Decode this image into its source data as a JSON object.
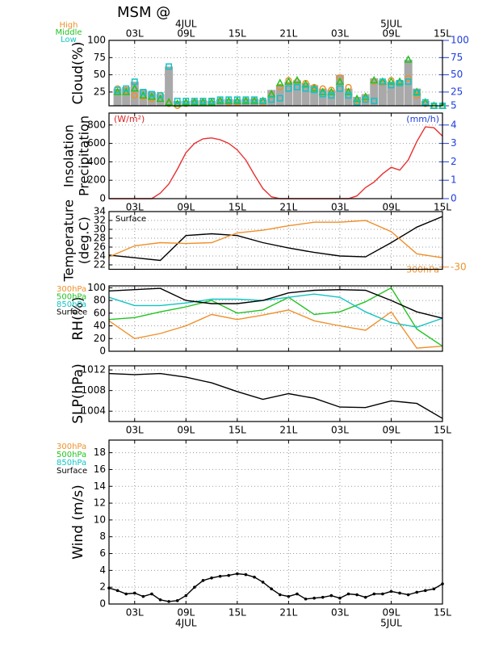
{
  "title": "MSM @",
  "time_axis": {
    "xlim": [
      0,
      39
    ],
    "xticks": [
      {
        "value": 3,
        "label": "03L"
      },
      {
        "value": 9,
        "label": "09L"
      },
      {
        "value": 15,
        "label": "15L"
      },
      {
        "value": 21,
        "label": "21L"
      },
      {
        "value": 27,
        "label": "03L"
      },
      {
        "value": 33,
        "label": "09L"
      },
      {
        "value": 39,
        "label": "15L"
      }
    ],
    "dates": [
      {
        "value": 9,
        "label": "4JUL"
      },
      {
        "value": 33,
        "label": "5JUL"
      }
    ]
  },
  "chart_data": [
    {
      "type": "bar",
      "ylabel": "Cloud(%)",
      "ylim": [
        5,
        100
      ],
      "yticks": [
        25,
        50,
        75,
        100
      ],
      "y2lim": [
        5,
        100
      ],
      "y2ticks": [
        5,
        25,
        50,
        75,
        100
      ],
      "y2_color": "#1e3ce0",
      "grid": true,
      "xtick_labels": "top",
      "date_labels": "top",
      "legend": "top-left",
      "color": "#a9a9a9",
      "x": [
        1,
        2,
        3,
        4,
        5,
        6,
        7,
        8,
        9,
        10,
        11,
        12,
        13,
        14,
        15,
        16,
        17,
        18,
        19,
        20,
        21,
        22,
        23,
        24,
        25,
        26,
        27,
        28,
        29,
        30,
        31,
        32,
        33,
        34,
        35,
        36,
        37,
        38,
        39
      ],
      "values": [
        30,
        32,
        40,
        28,
        25,
        22,
        62,
        12,
        12,
        13,
        13,
        12,
        14,
        15,
        14,
        15,
        15,
        14,
        28,
        35,
        40,
        42,
        38,
        35,
        30,
        28,
        50,
        30,
        18,
        22,
        45,
        42,
        40,
        42,
        72,
        30,
        12,
        6,
        5
      ],
      "series": [
        {
          "name": "High",
          "color": "#f0902a",
          "style": "circle",
          "values": [
            30,
            28,
            20,
            18,
            15,
            20,
            8,
            5,
            8,
            10,
            10,
            12,
            12,
            10,
            10,
            12,
            12,
            10,
            20,
            32,
            42,
            40,
            38,
            32,
            30,
            28,
            46,
            32,
            12,
            16,
            40,
            38,
            42,
            38,
            45,
            20,
            8,
            5,
            5
          ]
        },
        {
          "name": "Middle",
          "color": "#22c322",
          "style": "triangle",
          "values": [
            25,
            25,
            30,
            20,
            18,
            15,
            10,
            8,
            10,
            10,
            10,
            10,
            12,
            12,
            12,
            12,
            12,
            12,
            22,
            38,
            40,
            42,
            36,
            30,
            25,
            25,
            40,
            25,
            15,
            18,
            42,
            40,
            40,
            40,
            72,
            25,
            10,
            5,
            5
          ]
        },
        {
          "name": "Low",
          "color": "#12c4c4",
          "style": "square",
          "values": [
            28,
            30,
            40,
            25,
            22,
            20,
            62,
            12,
            12,
            12,
            12,
            12,
            14,
            14,
            14,
            14,
            14,
            12,
            14,
            16,
            30,
            32,
            30,
            28,
            22,
            20,
            30,
            20,
            10,
            14,
            12,
            40,
            35,
            38,
            40,
            24,
            10,
            5,
            5
          ]
        }
      ]
    },
    {
      "type": "line",
      "ylabel": [
        "Insolation",
        "Precipitation"
      ],
      "units_left": "(W/m²)",
      "units_left_color": "#e02020",
      "units_right": "(mm/h)",
      "ylim": [
        0,
        930
      ],
      "yticks": [
        0,
        200,
        400,
        600,
        800
      ],
      "y2lim": [
        0,
        4.65
      ],
      "y2ticks": [
        0,
        1,
        2,
        3,
        4
      ],
      "y2_color": "#1e3ce0",
      "grid": true,
      "xtick_labels": "bottom",
      "x": [
        0,
        1,
        2,
        3,
        4,
        5,
        6,
        7,
        8,
        9,
        10,
        11,
        12,
        13,
        14,
        15,
        16,
        17,
        18,
        19,
        20,
        21,
        22,
        23,
        24,
        25,
        26,
        27,
        28,
        29,
        30,
        31,
        32,
        33,
        34,
        35,
        36,
        37,
        38,
        39
      ],
      "series": [
        {
          "color": "#e83030",
          "style": "line",
          "values": [
            0,
            0,
            0,
            0,
            0,
            0,
            60,
            160,
            320,
            500,
            600,
            650,
            660,
            640,
            600,
            530,
            420,
            260,
            110,
            20,
            0,
            0,
            0,
            0,
            0,
            0,
            0,
            0,
            0,
            30,
            120,
            180,
            270,
            340,
            310,
            420,
            620,
            780,
            770,
            680
          ]
        }
      ]
    },
    {
      "type": "line",
      "ylabel": [
        "Temperature",
        "(deg.C)"
      ],
      "ylim": [
        21,
        34
      ],
      "yticks": [
        22,
        24,
        26,
        28,
        30,
        32,
        34
      ],
      "y2lim": [
        -30.5,
        -17.5
      ],
      "y2ticks": [
        -30
      ],
      "y2_color": "#f0902a",
      "grid": true,
      "xtick_labels": "none",
      "x": [
        0,
        3,
        6,
        9,
        12,
        15,
        18,
        21,
        24,
        27,
        30,
        33,
        36,
        39
      ],
      "series": [
        {
          "name": "Surface",
          "color": "#000000",
          "style": "line",
          "values": [
            24.2,
            23.6,
            23.0,
            28.6,
            29.0,
            28.6,
            27.0,
            25.8,
            24.8,
            24.0,
            23.8,
            27.0,
            30.5,
            32.9
          ]
        },
        {
          "name": "300hPa",
          "color": "#f0902a",
          "style": "line",
          "axis": "y2",
          "values": [
            -27.7,
            -25.2,
            -24.5,
            -24.7,
            -24.5,
            -22.3,
            -21.7,
            -20.7,
            -19.9,
            -19.9,
            -19.5,
            -22.0,
            -27.0,
            -27.9
          ]
        }
      ]
    },
    {
      "type": "line",
      "ylabel": "RH(%)",
      "ylim": [
        0,
        103
      ],
      "yticks": [
        0,
        20,
        40,
        60,
        80,
        100
      ],
      "grid": true,
      "xtick_labels": "none",
      "legend": "left",
      "x": [
        0,
        3,
        6,
        9,
        12,
        15,
        18,
        21,
        24,
        27,
        30,
        33,
        36,
        39
      ],
      "series": [
        {
          "name": "300hPa",
          "color": "#f0902a",
          "style": "line",
          "values": [
            48,
            20,
            28,
            40,
            58,
            50,
            57,
            65,
            48,
            40,
            33,
            62,
            5,
            8
          ]
        },
        {
          "name": "500hPa",
          "color": "#22c322",
          "style": "line",
          "values": [
            50,
            53,
            62,
            70,
            80,
            60,
            65,
            85,
            58,
            62,
            78,
            100,
            35,
            8
          ]
        },
        {
          "name": "850hPa",
          "color": "#12c4c4",
          "style": "line",
          "values": [
            85,
            72,
            72,
            76,
            82,
            82,
            80,
            85,
            90,
            85,
            62,
            45,
            38,
            52
          ]
        },
        {
          "name": "Surface",
          "color": "#000000",
          "style": "line",
          "values": [
            95,
            97,
            99,
            80,
            75,
            75,
            80,
            92,
            96,
            97,
            96,
            80,
            62,
            52
          ]
        }
      ]
    },
    {
      "type": "line",
      "ylabel": "SLP(hPa)",
      "ylim": [
        1002,
        1012.8
      ],
      "yticks": [
        1004,
        1008,
        1012
      ],
      "grid": true,
      "xtick_labels": "bottom",
      "x": [
        0,
        3,
        6,
        9,
        12,
        15,
        18,
        21,
        24,
        27,
        30,
        33,
        36,
        39
      ],
      "series": [
        {
          "color": "#000000",
          "style": "line",
          "values": [
            1011.3,
            1011.1,
            1011.3,
            1010.6,
            1009.5,
            1007.8,
            1006.3,
            1007.4,
            1006.5,
            1004.8,
            1004.7,
            1006.0,
            1005.5,
            1002.6
          ]
        }
      ]
    },
    {
      "type": "line",
      "ylabel": "Wind  (m/s)",
      "ylim": [
        0,
        19.5
      ],
      "yticks": [
        0,
        2,
        4,
        6,
        8,
        10,
        12,
        14,
        16,
        18
      ],
      "grid": true,
      "xtick_labels": "bottom",
      "date_labels": "bottom",
      "barb_levels": [
        {
          "name": "300hPa",
          "color": "#f0902a"
        },
        {
          "name": "500hPa",
          "color": "#22c322"
        },
        {
          "name": "850hPa",
          "color": "#12c4c4"
        },
        {
          "name": "Surface",
          "color": "#000000"
        }
      ],
      "x": [
        0,
        1,
        2,
        3,
        4,
        5,
        6,
        7,
        8,
        9,
        10,
        11,
        12,
        13,
        14,
        15,
        16,
        17,
        18,
        19,
        20,
        21,
        22,
        23,
        24,
        25,
        26,
        27,
        28,
        29,
        30,
        31,
        32,
        33,
        34,
        35,
        36,
        37,
        38,
        39
      ],
      "series": [
        {
          "color": "#000000",
          "style": "line-dots",
          "values": [
            1.9,
            1.6,
            1.2,
            1.3,
            0.9,
            1.2,
            0.5,
            0.3,
            0.4,
            1.0,
            2.0,
            2.8,
            3.1,
            3.3,
            3.4,
            3.6,
            3.5,
            3.2,
            2.6,
            1.8,
            1.1,
            0.9,
            1.2,
            0.6,
            0.7,
            0.8,
            1.0,
            0.7,
            1.2,
            1.1,
            0.8,
            1.2,
            1.2,
            1.5,
            1.3,
            1.1,
            1.4,
            1.6,
            1.8,
            2.4
          ]
        }
      ]
    }
  ]
}
